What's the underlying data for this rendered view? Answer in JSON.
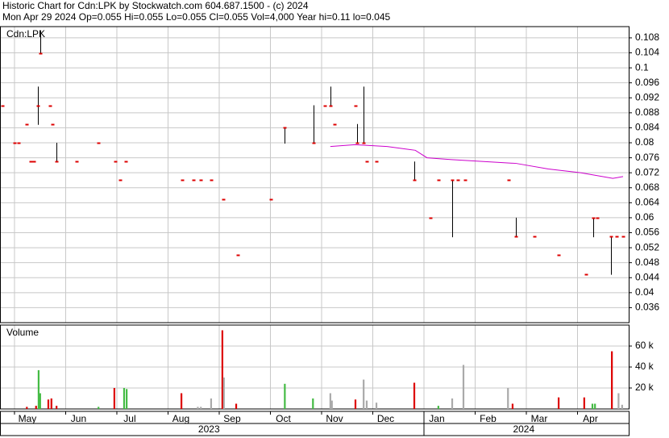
{
  "chart_data": [
    {
      "type": "ohlc",
      "title": "Historic Chart for Cdn:LPK by Stockwatch.com 604.687.1500 - (c) 2024",
      "subtitle": "Mon Apr 29 2024   Op=0.055  Hi=0.055  Lo=0.055  Cl=0.055  Vol=4,000   Year hi=0.11  lo=0.045",
      "label": "Cdn:LPK",
      "x": [
        -0.24,
        0,
        0.08,
        0.24,
        0.31,
        0.38,
        0.46,
        0.5,
        0.69,
        0.74,
        0.82,
        1.21,
        1.64,
        1.97,
        2.06,
        2.17,
        3.28,
        3.5,
        3.64,
        3.84,
        4.08,
        4.36,
        5.01,
        5.28,
        5.84,
        6.06,
        6.17,
        6.25,
        6.66,
        6.69,
        6.82,
        6.88,
        7.07,
        7.81,
        8.13,
        8.28,
        8.55,
        8.66,
        8.8,
        9.65,
        9.8,
        10.16,
        10.63,
        11.17,
        11.31,
        11.39,
        11.65,
        11.76,
        11.89
      ],
      "high": [
        0.09,
        0.08,
        0.08,
        0.085,
        0.075,
        0.075,
        0.095,
        0.11,
        0.09,
        0.085,
        0.08,
        0.075,
        0.08,
        0.075,
        0.07,
        0.075,
        0.07,
        0.07,
        0.07,
        0.07,
        0.065,
        0.05,
        0.065,
        0.084,
        0.09,
        0.09,
        0.095,
        0.085,
        0.09,
        0.085,
        0.095,
        0.075,
        0.075,
        0.075,
        0.06,
        0.07,
        0.07,
        0.07,
        0.07,
        0.07,
        0.06,
        0.055,
        0.05,
        0.045,
        0.06,
        0.06,
        0.055,
        0.055,
        0.055
      ],
      "low": [
        0.09,
        0.08,
        0.08,
        0.085,
        0.075,
        0.075,
        0.085,
        0.104,
        0.09,
        0.085,
        0.075,
        0.075,
        0.08,
        0.075,
        0.07,
        0.075,
        0.07,
        0.07,
        0.07,
        0.07,
        0.065,
        0.05,
        0.065,
        0.08,
        0.08,
        0.09,
        0.09,
        0.085,
        0.09,
        0.08,
        0.08,
        0.075,
        0.075,
        0.07,
        0.06,
        0.07,
        0.055,
        0.07,
        0.07,
        0.07,
        0.055,
        0.055,
        0.05,
        0.045,
        0.055,
        0.06,
        0.045,
        0.055,
        0.055
      ],
      "close": [
        0.09,
        0.08,
        0.08,
        0.085,
        0.075,
        0.075,
        0.09,
        0.104,
        0.09,
        0.085,
        0.075,
        0.075,
        0.08,
        0.075,
        0.07,
        0.075,
        0.07,
        0.07,
        0.07,
        0.07,
        0.065,
        0.05,
        0.065,
        0.084,
        0.08,
        0.09,
        0.09,
        0.085,
        0.09,
        0.08,
        0.08,
        0.075,
        0.075,
        0.07,
        0.06,
        0.07,
        0.07,
        0.07,
        0.07,
        0.07,
        0.055,
        0.055,
        0.05,
        0.045,
        0.06,
        0.06,
        0.055,
        0.055,
        0.055
      ],
      "color": "#dd0000",
      "wick_color": "#000000",
      "ma": {
        "color": "#cc00cc",
        "x": [
          6.17,
          6.65,
          7.28,
          7.83,
          8.06,
          8.54,
          9.17,
          9.8,
          10.43,
          11.06,
          11.69,
          11.89
        ],
        "values": [
          0.079,
          0.0795,
          0.079,
          0.078,
          0.076,
          0.0755,
          0.075,
          0.0745,
          0.073,
          0.072,
          0.0705,
          0.071
        ]
      },
      "xlim": [
        -0.283,
        12.0
      ],
      "xticks": [
        {
          "value": 0,
          "label": "May"
        },
        {
          "value": 1,
          "label": "Jun"
        },
        {
          "value": 2,
          "label": "Jul"
        },
        {
          "value": 3,
          "label": "Aug"
        },
        {
          "value": 4,
          "label": "Sep"
        },
        {
          "value": 5,
          "label": "Oct"
        },
        {
          "value": 6,
          "label": "Nov"
        },
        {
          "value": 7,
          "label": "Dec"
        },
        {
          "value": 8,
          "label": "Jan"
        },
        {
          "value": 9,
          "label": "Feb"
        },
        {
          "value": 10,
          "label": "Mar"
        },
        {
          "value": 11,
          "label": "Apr"
        }
      ],
      "year_labels": [
        {
          "value": 3.8,
          "label": "2023"
        },
        {
          "value": 9.95,
          "label": "2024"
        }
      ],
      "ylim": [
        0.032,
        0.111
      ],
      "yticks": [
        0.036,
        0.04,
        0.044,
        0.048,
        0.052,
        0.056,
        0.06,
        0.064,
        0.068,
        0.072,
        0.076,
        0.08,
        0.084,
        0.088,
        0.092,
        0.096,
        0.1,
        0.104,
        0.108
      ],
      "grid": true
    },
    {
      "type": "bar",
      "label": "Volume",
      "x": [
        0.24,
        0.42,
        0.47,
        0.5,
        0.66,
        0.72,
        0.82,
        1.64,
        1.95,
        2.14,
        2.19,
        3.26,
        3.58,
        3.64,
        3.84,
        4.06,
        4.09,
        4.33,
        5.28,
        5.83,
        6.17,
        6.2,
        6.66,
        6.82,
        6.88,
        7.07,
        7.81,
        8.28,
        8.55,
        8.77,
        9.64,
        9.73,
        10.63,
        11.13,
        11.29,
        11.34,
        11.67,
        11.8,
        11.87
      ],
      "values": [
        2000,
        3000,
        37000,
        15000,
        9000,
        10000,
        3000,
        2000,
        20000,
        20000,
        19000,
        15000,
        2000,
        2000,
        10000,
        75000,
        30000,
        5000,
        24000,
        10000,
        15000,
        8000,
        9000,
        28000,
        8000,
        6000,
        25000,
        3000,
        10000,
        42000,
        20000,
        5000,
        11000,
        11000,
        5000,
        5000,
        55000,
        15000,
        4000
      ],
      "colors": [
        "#dd0000",
        "#dd0000",
        "#44bb44",
        "#44bb44",
        "#dd0000",
        "#dd0000",
        "#dd0000",
        "#44bb44",
        "#dd0000",
        "#44bb44",
        "#44bb44",
        "#dd0000",
        "#aaaaaa",
        "#aaaaaa",
        "#aaaaaa",
        "#dd0000",
        "#aaaaaa",
        "#dd0000",
        "#44bb44",
        "#44bb44",
        "#aaaaaa",
        "#aaaaaa",
        "#dd0000",
        "#aaaaaa",
        "#aaaaaa",
        "#aaaaaa",
        "#dd0000",
        "#44bb44",
        "#aaaaaa",
        "#aaaaaa",
        "#aaaaaa",
        "#dd0000",
        "#dd0000",
        "#dd0000",
        "#44bb44",
        "#44bb44",
        "#dd0000",
        "#aaaaaa",
        "#aaaaaa"
      ],
      "ylim": [
        0,
        80000
      ],
      "yticks": [
        {
          "value": 20000,
          "label": "20 k"
        },
        {
          "value": 40000,
          "label": "40 k"
        },
        {
          "value": 60000,
          "label": "60 k"
        }
      ],
      "grid": true
    }
  ]
}
